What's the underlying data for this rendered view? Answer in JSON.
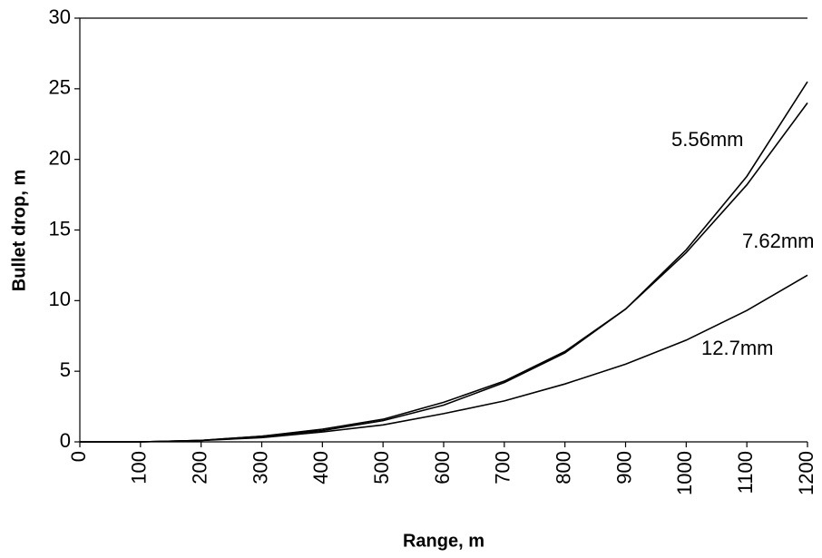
{
  "chart_data": {
    "type": "line",
    "x_label": "Range, m",
    "y_label": "Bullet drop, m",
    "x": [
      0,
      100,
      200,
      300,
      400,
      500,
      600,
      700,
      800,
      900,
      1000,
      1100,
      1200
    ],
    "series": [
      {
        "name": "5.56mm",
        "color": "#000000",
        "values": [
          0,
          0,
          0.1,
          0.4,
          0.9,
          1.6,
          2.8,
          4.3,
          6.4,
          9.4,
          13.6,
          18.8,
          25.5
        ]
      },
      {
        "name": "7.62mm",
        "color": "#000000",
        "values": [
          0,
          0,
          0.1,
          0.4,
          0.8,
          1.5,
          2.6,
          4.2,
          6.3,
          9.4,
          13.4,
          18.2,
          24
        ]
      },
      {
        "name": "12.7mm",
        "color": "#000000",
        "values": [
          0,
          0,
          0.1,
          0.3,
          0.7,
          1.2,
          2.0,
          2.9,
          4.1,
          5.5,
          7.2,
          9.3,
          11.8
        ]
      }
    ],
    "xlim": [
      0,
      1200
    ],
    "xticks": [
      0,
      100,
      200,
      300,
      400,
      500,
      600,
      700,
      800,
      900,
      1000,
      1100,
      1200
    ],
    "ylim": [
      0,
      30
    ],
    "yticks": [
      0,
      5,
      10,
      15,
      20,
      25,
      30
    ],
    "grid": false
  }
}
